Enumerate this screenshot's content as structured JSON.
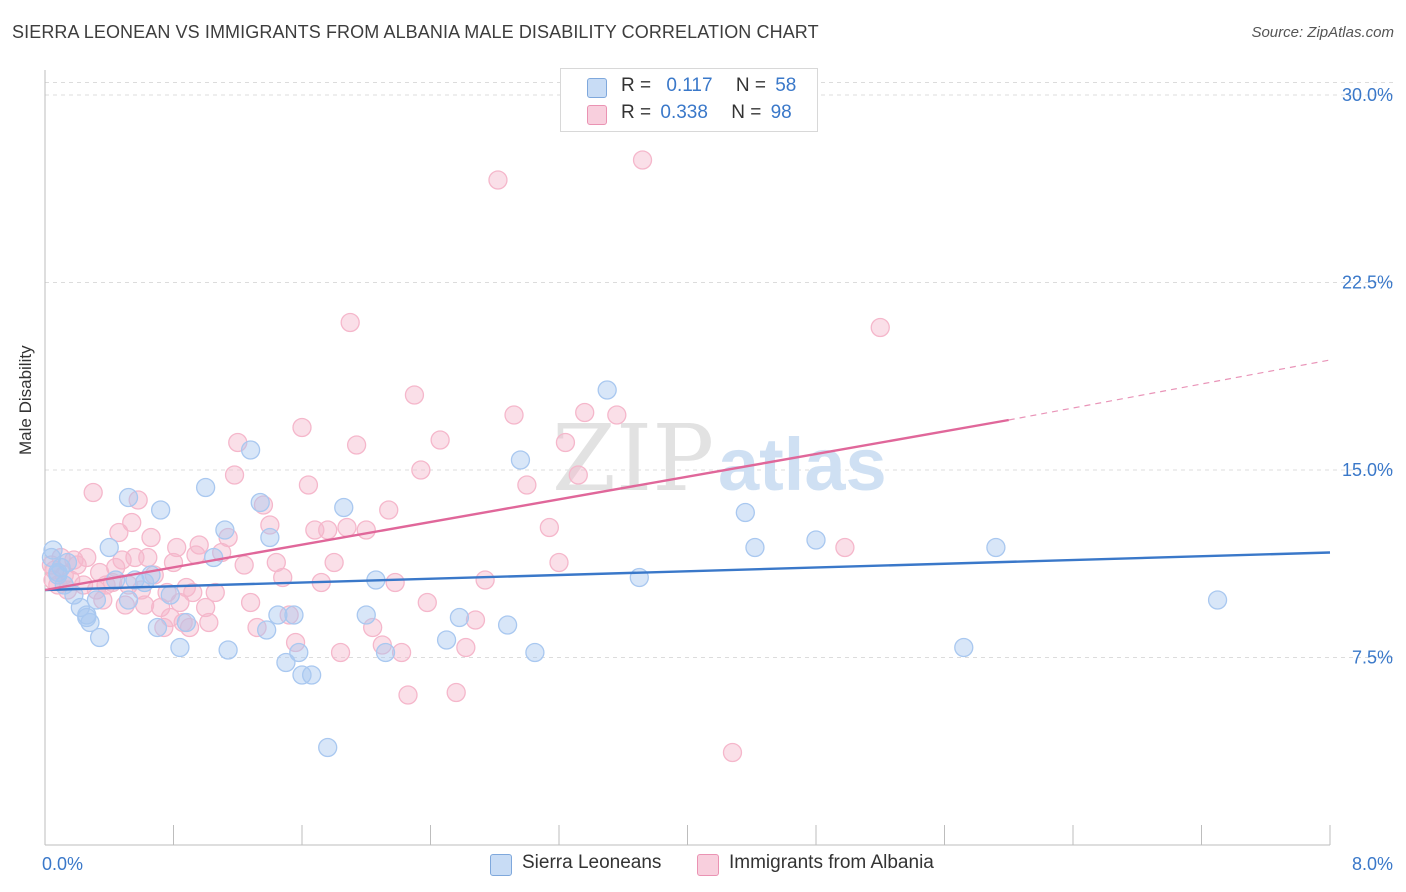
{
  "title": "SIERRA LEONEAN VS IMMIGRANTS FROM ALBANIA MALE DISABILITY CORRELATION CHART",
  "source": "Source: ZipAtlas.com",
  "watermark": {
    "zip": "ZIP",
    "atlas": "atlas"
  },
  "legend": {
    "rows": [
      {
        "r_label": "R =",
        "r_value": "0.117",
        "n_label": "N =",
        "n_value": "58",
        "color": "#a9c8f0"
      },
      {
        "r_label": "R =",
        "r_value": "0.338",
        "n_label": "N =",
        "n_value": "98",
        "color": "#f5b7cb"
      }
    ]
  },
  "bottom_legend": [
    {
      "label": "Sierra Leoneans",
      "color": "#a9c8f0"
    },
    {
      "label": "Immigrants from Albania",
      "color": "#f5b7cb"
    }
  ],
  "chart_data": {
    "type": "scatter",
    "title": "SIERRA LEONEAN VS IMMIGRANTS FROM ALBANIA MALE DISABILITY CORRELATION CHART",
    "xlabel": "",
    "ylabel": "Male Disability",
    "xlim": [
      0,
      8
    ],
    "ylim": [
      0,
      31
    ],
    "x_tick_labels": [
      "0.0%",
      "8.0%"
    ],
    "y_ticks": [
      7.5,
      15,
      22.5,
      30
    ],
    "y_tick_labels": [
      "7.5%",
      "15.0%",
      "22.5%",
      "30.0%"
    ],
    "grid": true,
    "legend_position": "top-center",
    "series": [
      {
        "name": "Sierra Leoneans",
        "color": "#3a78c9",
        "fill": "#a9c8f0",
        "trend": {
          "x": [
            0,
            8
          ],
          "y": [
            10.2,
            11.7
          ]
        },
        "points": [
          [
            0.05,
            11.8
          ],
          [
            0.04,
            11.5
          ],
          [
            0.08,
            10.8
          ],
          [
            0.1,
            11.1
          ],
          [
            0.14,
            11.3
          ],
          [
            0.12,
            10.4
          ],
          [
            0.18,
            10.0
          ],
          [
            0.22,
            9.5
          ],
          [
            0.26,
            9.1
          ],
          [
            0.28,
            8.9
          ],
          [
            0.32,
            9.8
          ],
          [
            0.44,
            10.6
          ],
          [
            0.52,
            9.8
          ],
          [
            0.4,
            11.9
          ],
          [
            0.52,
            13.9
          ],
          [
            0.56,
            10.6
          ],
          [
            0.62,
            10.5
          ],
          [
            0.66,
            10.8
          ],
          [
            0.7,
            8.7
          ],
          [
            0.72,
            13.4
          ],
          [
            0.78,
            10.0
          ],
          [
            0.84,
            7.9
          ],
          [
            0.88,
            8.9
          ],
          [
            1.0,
            14.3
          ],
          [
            1.05,
            11.5
          ],
          [
            1.12,
            12.6
          ],
          [
            1.14,
            7.8
          ],
          [
            1.28,
            15.8
          ],
          [
            1.34,
            13.7
          ],
          [
            1.38,
            8.6
          ],
          [
            1.4,
            12.3
          ],
          [
            1.45,
            9.2
          ],
          [
            1.5,
            7.3
          ],
          [
            1.55,
            9.2
          ],
          [
            1.58,
            7.7
          ],
          [
            1.6,
            6.8
          ],
          [
            1.66,
            6.8
          ],
          [
            1.76,
            3.9
          ],
          [
            1.86,
            13.5
          ],
          [
            2.0,
            9.2
          ],
          [
            2.06,
            10.6
          ],
          [
            2.12,
            7.7
          ],
          [
            2.5,
            8.2
          ],
          [
            2.58,
            9.1
          ],
          [
            2.88,
            8.8
          ],
          [
            2.96,
            15.4
          ],
          [
            3.05,
            7.7
          ],
          [
            3.5,
            18.2
          ],
          [
            3.7,
            10.7
          ],
          [
            4.36,
            13.3
          ],
          [
            4.42,
            11.9
          ],
          [
            4.8,
            12.2
          ],
          [
            5.72,
            7.9
          ],
          [
            5.92,
            11.9
          ],
          [
            7.3,
            9.8
          ],
          [
            0.26,
            9.2
          ],
          [
            0.08,
            10.9
          ],
          [
            0.34,
            8.3
          ]
        ]
      },
      {
        "name": "Immigrants from Albania",
        "color": "#e0679a",
        "fill": "#f5b7cb",
        "trend": {
          "x": [
            0,
            6
          ],
          "y": [
            10.2,
            17.0
          ]
        },
        "trend_dashed": {
          "x": [
            6,
            8
          ],
          "y": [
            17.0,
            19.4
          ]
        },
        "points": [
          [
            0.04,
            11.2
          ],
          [
            0.05,
            10.6
          ],
          [
            0.06,
            11.0
          ],
          [
            0.08,
            10.4
          ],
          [
            0.1,
            11.5
          ],
          [
            0.12,
            10.8
          ],
          [
            0.14,
            10.2
          ],
          [
            0.16,
            10.6
          ],
          [
            0.18,
            11.4
          ],
          [
            0.2,
            11.2
          ],
          [
            0.24,
            10.4
          ],
          [
            0.26,
            11.5
          ],
          [
            0.3,
            14.1
          ],
          [
            0.32,
            10.2
          ],
          [
            0.34,
            10.9
          ],
          [
            0.36,
            9.8
          ],
          [
            0.38,
            10.4
          ],
          [
            0.42,
            10.5
          ],
          [
            0.44,
            11.1
          ],
          [
            0.46,
            12.5
          ],
          [
            0.48,
            11.4
          ],
          [
            0.5,
            9.6
          ],
          [
            0.52,
            10.4
          ],
          [
            0.54,
            12.9
          ],
          [
            0.56,
            11.5
          ],
          [
            0.58,
            13.8
          ],
          [
            0.6,
            10.2
          ],
          [
            0.62,
            9.6
          ],
          [
            0.64,
            11.5
          ],
          [
            0.66,
            12.3
          ],
          [
            0.68,
            10.8
          ],
          [
            0.72,
            9.5
          ],
          [
            0.74,
            8.7
          ],
          [
            0.76,
            10.1
          ],
          [
            0.78,
            9.1
          ],
          [
            0.8,
            11.3
          ],
          [
            0.82,
            11.9
          ],
          [
            0.84,
            9.7
          ],
          [
            0.86,
            8.9
          ],
          [
            0.88,
            10.3
          ],
          [
            0.9,
            8.7
          ],
          [
            0.92,
            10.1
          ],
          [
            0.94,
            11.6
          ],
          [
            0.96,
            12.0
          ],
          [
            1.0,
            9.5
          ],
          [
            1.02,
            8.9
          ],
          [
            1.06,
            10.1
          ],
          [
            1.1,
            11.7
          ],
          [
            1.14,
            12.3
          ],
          [
            1.18,
            14.8
          ],
          [
            1.2,
            16.1
          ],
          [
            1.24,
            11.2
          ],
          [
            1.28,
            9.7
          ],
          [
            1.32,
            8.7
          ],
          [
            1.36,
            13.6
          ],
          [
            1.4,
            12.8
          ],
          [
            1.44,
            11.3
          ],
          [
            1.48,
            10.7
          ],
          [
            1.52,
            9.2
          ],
          [
            1.56,
            8.1
          ],
          [
            1.6,
            16.7
          ],
          [
            1.64,
            14.4
          ],
          [
            1.68,
            12.6
          ],
          [
            1.72,
            10.5
          ],
          [
            1.76,
            12.6
          ],
          [
            1.8,
            11.3
          ],
          [
            1.84,
            7.7
          ],
          [
            1.88,
            12.7
          ],
          [
            1.9,
            20.9
          ],
          [
            1.94,
            16.0
          ],
          [
            2.0,
            12.6
          ],
          [
            2.04,
            8.7
          ],
          [
            2.1,
            8.0
          ],
          [
            2.14,
            13.4
          ],
          [
            2.18,
            10.5
          ],
          [
            2.22,
            7.7
          ],
          [
            2.26,
            6.0
          ],
          [
            2.3,
            18.0
          ],
          [
            2.34,
            15.0
          ],
          [
            2.38,
            9.7
          ],
          [
            2.46,
            16.2
          ],
          [
            2.56,
            6.1
          ],
          [
            2.62,
            7.9
          ],
          [
            2.68,
            9.0
          ],
          [
            2.74,
            10.6
          ],
          [
            2.82,
            26.6
          ],
          [
            2.92,
            17.2
          ],
          [
            3.0,
            14.4
          ],
          [
            3.14,
            12.7
          ],
          [
            3.2,
            11.3
          ],
          [
            3.24,
            16.1
          ],
          [
            3.32,
            14.8
          ],
          [
            3.36,
            17.3
          ],
          [
            3.56,
            17.2
          ],
          [
            3.72,
            27.4
          ],
          [
            4.28,
            3.7
          ],
          [
            4.98,
            11.9
          ],
          [
            5.2,
            20.7
          ]
        ]
      }
    ]
  }
}
